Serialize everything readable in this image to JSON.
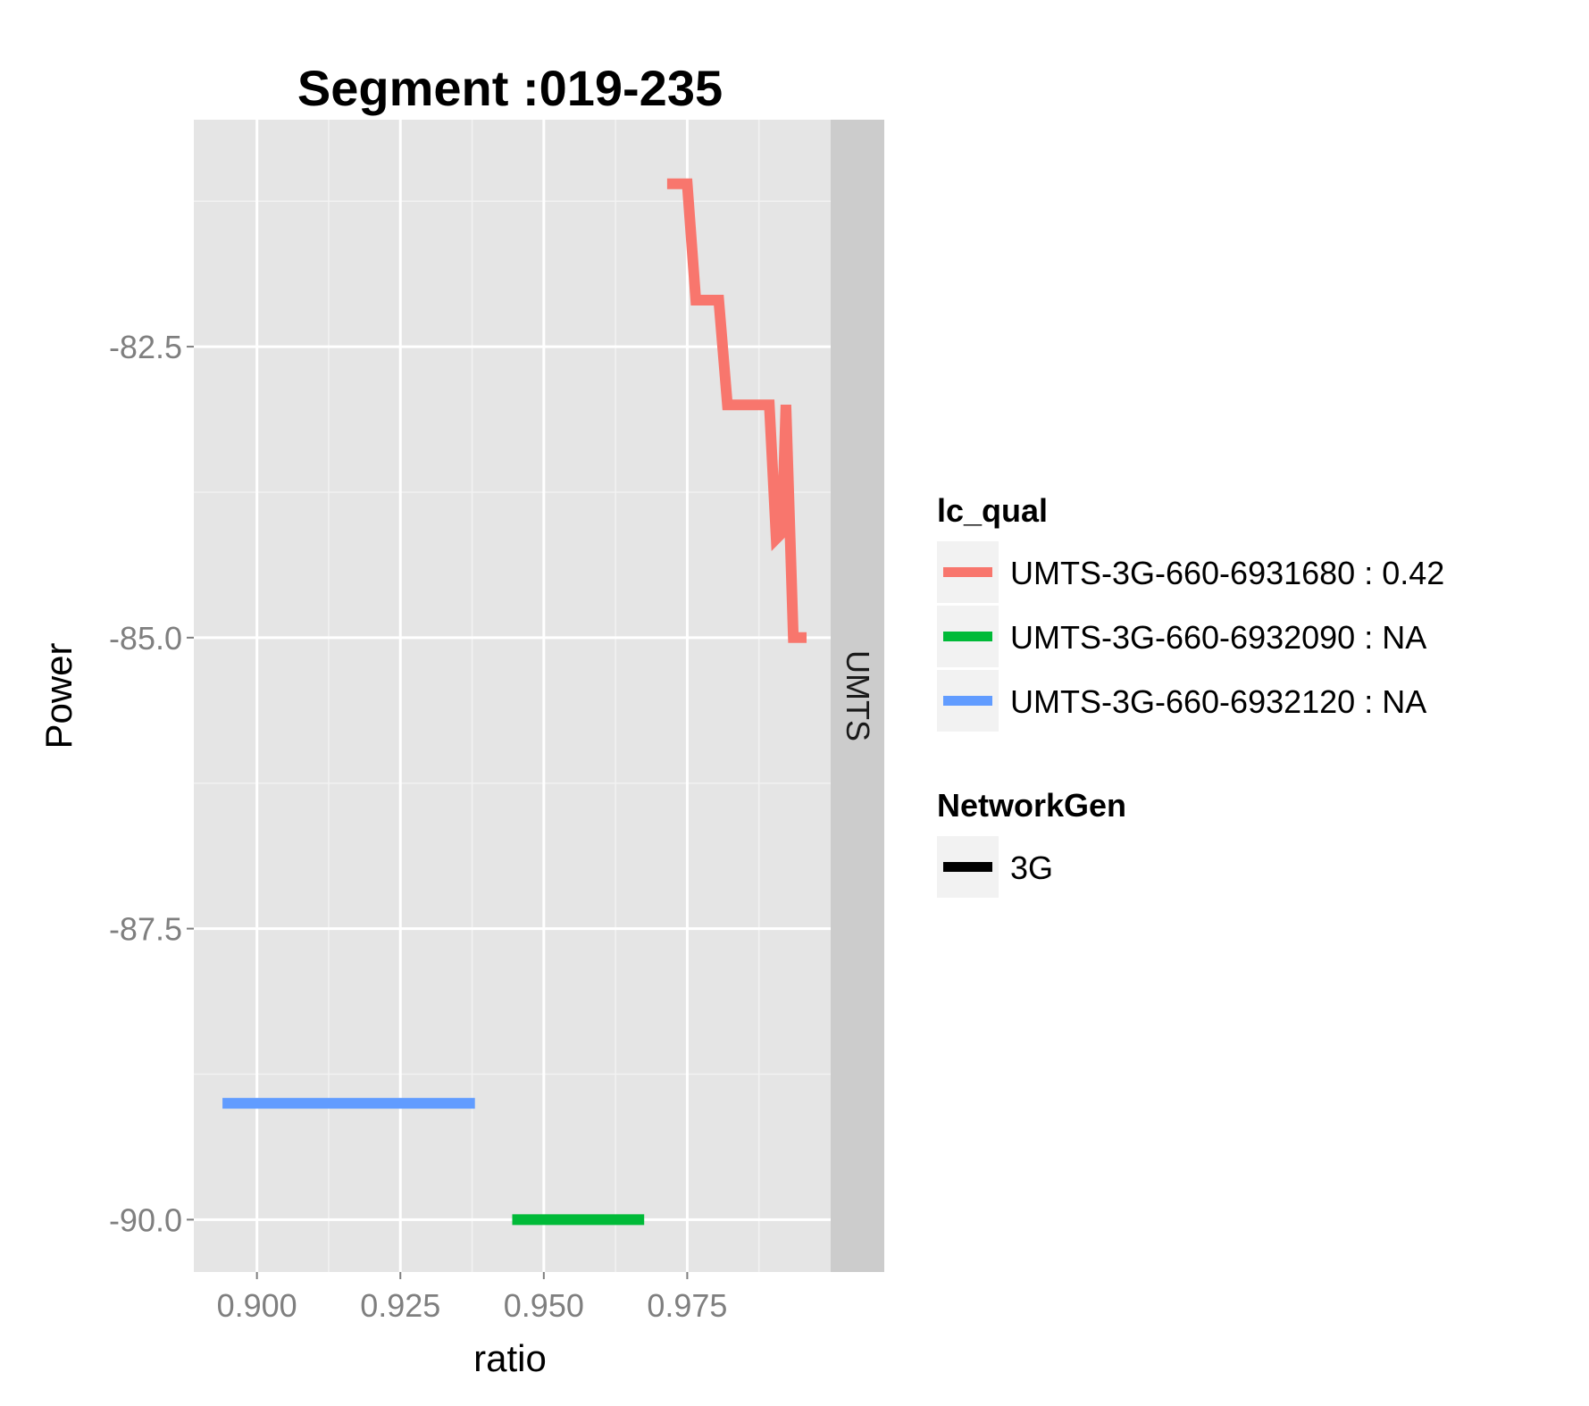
{
  "chart_data": {
    "type": "line",
    "title": "Segment :019-235",
    "xlabel": "ratio",
    "ylabel": "Power",
    "xlim": [
      0.889,
      1.0
    ],
    "ylim": [
      -90.45,
      -80.55
    ],
    "x_ticks": [
      0.9,
      0.925,
      0.95,
      0.975
    ],
    "x_tick_labels": [
      "0.900",
      "0.925",
      "0.950",
      "0.975"
    ],
    "y_ticks": [
      -82.5,
      -85.0,
      -87.5,
      -90.0
    ],
    "y_tick_labels": [
      "-82.5",
      "-85.0",
      "-87.5",
      "-90.0"
    ],
    "grid": true,
    "facet_label": "UMTS",
    "legend_position": "right",
    "legend": {
      "color_title": "lc_qual",
      "linetype_title": "NetworkGen",
      "linetype_entries": [
        {
          "label": "3G",
          "color": "#000000"
        }
      ]
    },
    "series": [
      {
        "name": "UMTS-3G-660-6931680 : 0.42",
        "color": "#f8766d",
        "x": [
          0.9715,
          0.975,
          0.9765,
          0.9805,
          0.982,
          0.9893,
          0.9905,
          0.9915,
          0.9922,
          0.9935,
          0.9945,
          0.9958
        ],
        "y": [
          -81.1,
          -81.1,
          -82.1,
          -82.1,
          -83.0,
          -83.0,
          -84.15,
          -84.1,
          -83.0,
          -85.0,
          -85.0,
          -85.0
        ]
      },
      {
        "name": "UMTS-3G-660-6932090 : NA",
        "color": "#00ba38",
        "x": [
          0.9445,
          0.9675
        ],
        "y": [
          -90.0,
          -90.0
        ]
      },
      {
        "name": "UMTS-3G-660-6932120 : NA",
        "color": "#619cff",
        "x": [
          0.894,
          0.938
        ],
        "y": [
          -89.0,
          -89.0
        ]
      }
    ]
  }
}
